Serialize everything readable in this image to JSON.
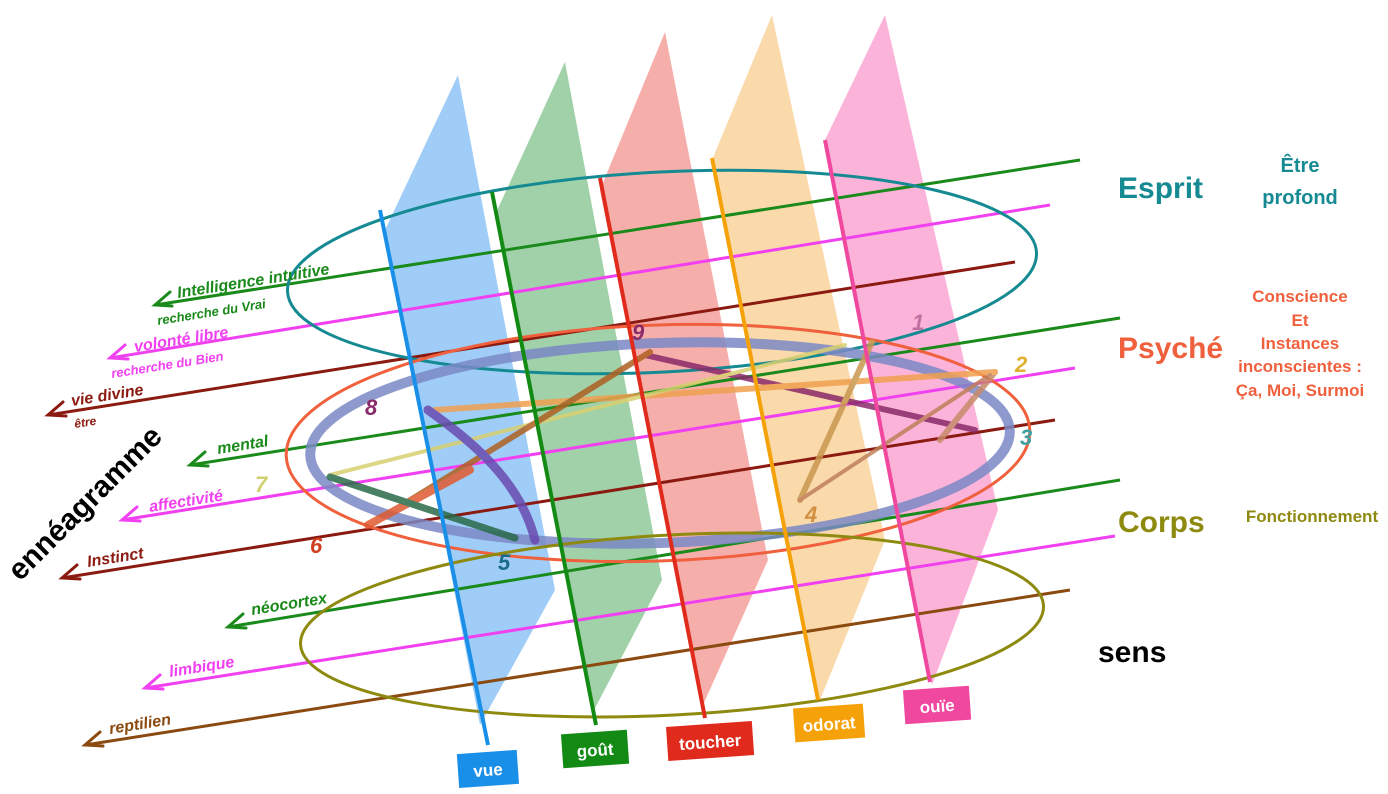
{
  "senses": [
    {
      "key": "vue",
      "label": "vue",
      "color": "#1a8fe8",
      "fill": "#8ec4f7"
    },
    {
      "key": "gout",
      "label": "goût",
      "color": "#138a13",
      "fill": "#8fc99a"
    },
    {
      "key": "toucher",
      "label": "toucher",
      "color": "#e02a1c",
      "fill": "#f4a09c"
    },
    {
      "key": "odorat",
      "label": "odorat",
      "color": "#f5a20a",
      "fill": "#f9d29c"
    },
    {
      "key": "ouie",
      "label": "ouïe",
      "color": "#f0479f",
      "fill": "#fba6d3"
    }
  ],
  "levels": {
    "esprit": {
      "label": "Esprit",
      "desc": "Être profond",
      "desc_lines": [
        "Être",
        "profond"
      ],
      "color": "#168a92"
    },
    "psyche": {
      "label": "Psyché",
      "desc_lines": [
        "Conscience",
        "Et",
        "Instances",
        "inconscientes :",
        "Ça, Moi, Surmoi"
      ],
      "color": "#f0603c"
    },
    "corps": {
      "label": "Corps",
      "desc": "Fonctionnement",
      "color": "#8e8a10"
    },
    "sens": {
      "label": "sens",
      "color": "#000000"
    }
  },
  "planes": [
    {
      "key": "intelligence",
      "label": "Intelligence intuitive",
      "sublabel": "recherche du Vrai",
      "color": "#1a8a1a"
    },
    {
      "key": "volonte",
      "label": "volonté libre",
      "sublabel": "recherche du Bien",
      "color": "#f040f0"
    },
    {
      "key": "vie",
      "label": "vie divine",
      "sublabel": "être",
      "color": "#8b1a10"
    },
    {
      "key": "mental",
      "label": "mental",
      "color": "#1a8a1a"
    },
    {
      "key": "affectivite",
      "label": "affectivité",
      "color": "#f040f0"
    },
    {
      "key": "instinct",
      "label": "Instinct",
      "color": "#8b1a10"
    },
    {
      "key": "neocortex",
      "label": "néocortex",
      "color": "#1a8a1a"
    },
    {
      "key": "limbique",
      "label": "limbique",
      "color": "#f040f0"
    },
    {
      "key": "reptilien",
      "label": "reptilien",
      "color": "#8b4a10"
    }
  ],
  "enneagram": {
    "title": "ennéagramme",
    "points": [
      "1",
      "2",
      "3",
      "4",
      "5",
      "6",
      "7",
      "8",
      "9"
    ]
  }
}
